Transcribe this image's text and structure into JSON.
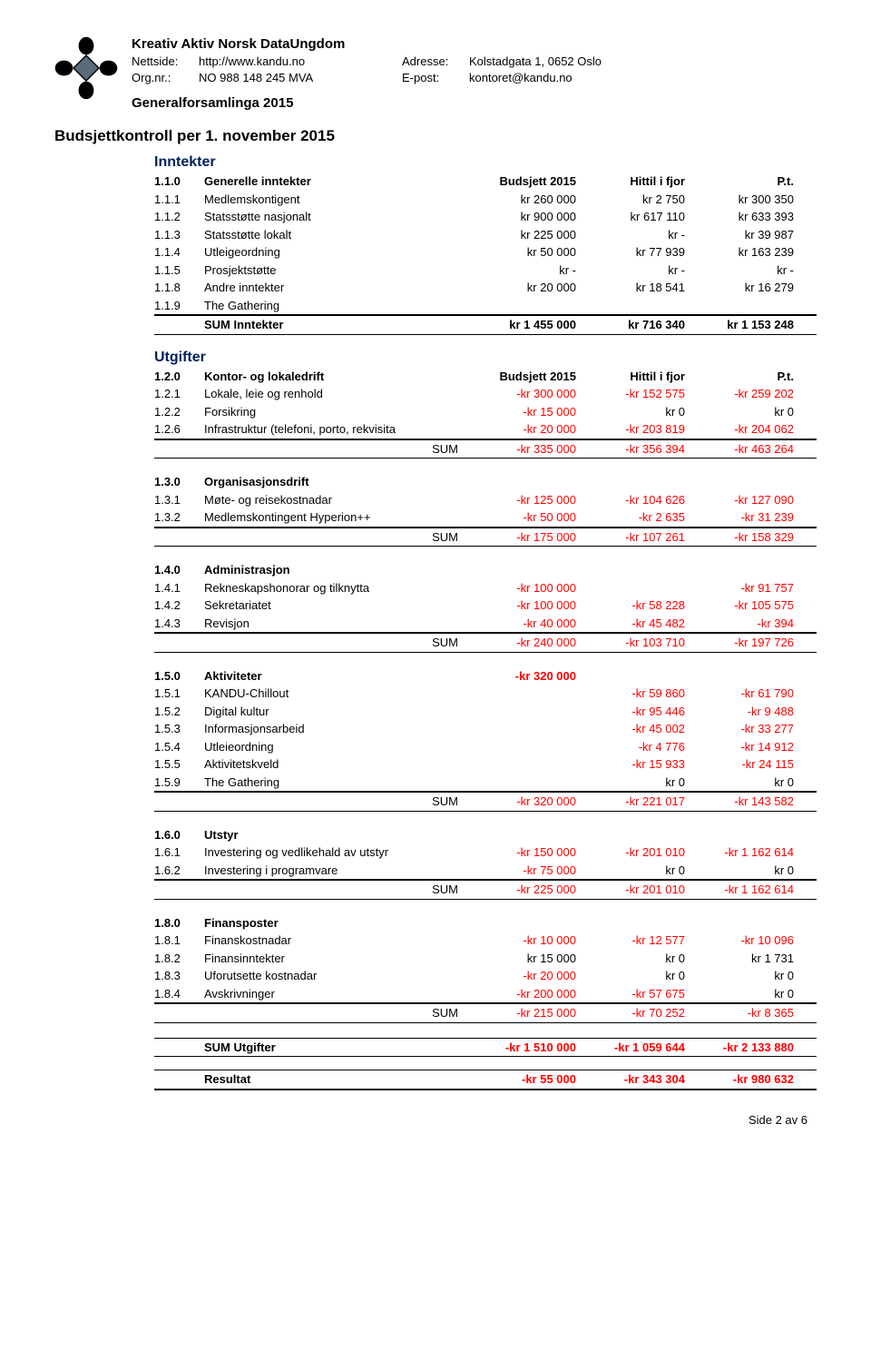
{
  "org": {
    "name": "Kreativ Aktiv Norsk DataUngdom",
    "website_label": "Nettside:",
    "website": "http://www.kandu.no",
    "orgnr_label": "Org.nr.:",
    "orgnr": "NO 988 148 245 MVA",
    "address_label": "Adresse:",
    "address": "Kolstadgata 1, 0652 Oslo",
    "email_label": "E-post:",
    "email": "kontoret@kandu.no",
    "assembly": "Generalforsamlinga 2015"
  },
  "title": "Budsjettkontroll per 1. november 2015",
  "inntekter": {
    "heading": "Inntekter",
    "headrow": {
      "num": "1.1.0",
      "label": "Generelle inntekter",
      "c3": "Budsjett 2015",
      "c4": "Hittil i fjor",
      "c5": "P.t."
    },
    "rows": [
      {
        "num": "1.1.1",
        "label": "Medlemskontigent",
        "c3": "kr 260 000",
        "c4": "kr 2 750",
        "c5": "kr 300 350"
      },
      {
        "num": "1.1.2",
        "label": "Statsstøtte nasjonalt",
        "c3": "kr 900 000",
        "c4": "kr 617 110",
        "c5": "kr 633 393"
      },
      {
        "num": "1.1.3",
        "label": "Statsstøtte lokalt",
        "c3": "kr 225 000",
        "c4": "kr -",
        "c5": "kr 39 987"
      },
      {
        "num": "1.1.4",
        "label": "Utleigeordning",
        "c3": "kr 50 000",
        "c4": "kr 77 939",
        "c5": "kr 163 239"
      },
      {
        "num": "1.1.5",
        "label": "Prosjektstøtte",
        "c3": "kr -",
        "c4": "kr -",
        "c5": "kr -"
      },
      {
        "num": "1.1.8",
        "label": "Andre inntekter",
        "c3": "kr 20 000",
        "c4": "kr 18 541",
        "c5": "kr 16 279"
      },
      {
        "num": "1.1.9",
        "label": "The Gathering",
        "c3": "",
        "c4": "",
        "c5": ""
      }
    ],
    "sum": {
      "label": "SUM Inntekter",
      "c3": "kr 1 455 000",
      "c4": "kr 716 340",
      "c5": "kr 1 153 248"
    }
  },
  "utgifter_heading": "Utgifter",
  "sections": [
    {
      "headrow": {
        "num": "1.2.0",
        "label": "Kontor- og lokaledrift",
        "c3": "Budsjett 2015",
        "c4": "Hittil i fjor",
        "c5": "P.t."
      },
      "rows": [
        {
          "num": "1.2.1",
          "label": "Lokale, leie og renhold",
          "c3": "-kr 300 000",
          "c4": "-kr 152 575",
          "c5": "-kr 259 202"
        },
        {
          "num": "1.2.2",
          "label": "Forsikring",
          "c3": "-kr 15 000",
          "c3neg": true,
          "c4": "kr 0",
          "c4neg": false,
          "c5": "kr 0",
          "c5neg": false
        },
        {
          "num": "1.2.6",
          "label": "Infrastruktur (telefoni, porto, rekvisita",
          "c3": "-kr 20 000",
          "c4": "-kr 203 819",
          "c5": "-kr 204 062"
        }
      ],
      "sum": {
        "label": "SUM",
        "c3": "-kr 335 000",
        "c4": "-kr 356 394",
        "c5": "-kr 463 264"
      }
    },
    {
      "headrow": {
        "num": "1.3.0",
        "label": "Organisasjonsdrift"
      },
      "rows": [
        {
          "num": "1.3.1",
          "label": "Møte- og reisekostnadar",
          "c3": "-kr 125 000",
          "c4": "-kr 104 626",
          "c5": "-kr 127 090"
        },
        {
          "num": "1.3.2",
          "label": "Medlemskontingent Hyperion++",
          "c3": "-kr 50 000",
          "c4": "-kr 2 635",
          "c5": "-kr 31 239"
        }
      ],
      "sum": {
        "label": "SUM",
        "c3": "-kr 175 000",
        "c4": "-kr 107 261",
        "c5": "-kr 158 329"
      }
    },
    {
      "headrow": {
        "num": "1.4.0",
        "label": "Administrasjon"
      },
      "rows": [
        {
          "num": "1.4.1",
          "label": "Rekneskapshonorar og tilknytta",
          "c3": "-kr 100 000",
          "c4": "",
          "c5": "-kr 91 757"
        },
        {
          "num": "1.4.2",
          "label": "Sekretariatet",
          "c3": "-kr 100 000",
          "c4": "-kr 58 228",
          "c5": "-kr 105 575"
        },
        {
          "num": "1.4.3",
          "label": "Revisjon",
          "c3": "-kr 40 000",
          "c4": "-kr 45 482",
          "c5": "-kr 394"
        }
      ],
      "sum": {
        "label": "SUM",
        "c3": "-kr 240 000",
        "c4": "-kr 103 710",
        "c5": "-kr 197 726"
      }
    },
    {
      "headrow": {
        "num": "1.5.0",
        "label": "Aktiviteter",
        "c3": "-kr 320 000",
        "c3neg": true
      },
      "rows": [
        {
          "num": "1.5.1",
          "label": "KANDU-Chillout",
          "c3": "",
          "c4": "-kr 59 860",
          "c5": "-kr 61 790"
        },
        {
          "num": "1.5.2",
          "label": "Digital kultur",
          "c3": "",
          "c4": "-kr 95 446",
          "c5": "-kr 9 488"
        },
        {
          "num": "1.5.3",
          "label": "Informasjonsarbeid",
          "c3": "",
          "c4": "-kr 45 002",
          "c5": "-kr 33 277"
        },
        {
          "num": "1.5.4",
          "label": "Utleieordning",
          "c3": "",
          "c4": "-kr 4 776",
          "c5": "-kr 14 912"
        },
        {
          "num": "1.5.5",
          "label": "Aktivitetskveld",
          "c3": "",
          "c4": "-kr 15 933",
          "c5": "-kr 24 115"
        },
        {
          "num": "1.5.9",
          "label": "The Gathering",
          "c3": "",
          "c4": "kr 0",
          "c4neg": false,
          "c5": "kr 0",
          "c5neg": false
        }
      ],
      "sum": {
        "label": "SUM",
        "c3": "-kr 320 000",
        "c4": "-kr 221 017",
        "c5": "-kr 143 582"
      }
    },
    {
      "headrow": {
        "num": "1.6.0",
        "label": "Utstyr"
      },
      "rows": [
        {
          "num": "1.6.1",
          "label": "Investering og vedlikehald av utstyr",
          "c3": "-kr 150 000",
          "c4": "-kr 201 010",
          "c5": "-kr 1 162 614"
        },
        {
          "num": "1.6.2",
          "label": "Investering i programvare",
          "c3": "-kr 75 000",
          "c3neg": true,
          "c4": "kr 0",
          "c4neg": false,
          "c5": "kr 0",
          "c5neg": false
        }
      ],
      "sum": {
        "label": "SUM",
        "c3": "-kr 225 000",
        "c4": "-kr 201 010",
        "c5": "-kr 1 162 614"
      }
    },
    {
      "headrow": {
        "num": "1.8.0",
        "label": "Finansposter"
      },
      "rows": [
        {
          "num": "1.8.1",
          "label": "Finanskostnadar",
          "c3": "-kr 10 000",
          "c4": "-kr 12 577",
          "c5": "-kr 10 096"
        },
        {
          "num": "1.8.2",
          "label": "Finansinntekter",
          "c3": "kr 15 000",
          "c3neg": false,
          "c4": "kr 0",
          "c4neg": false,
          "c5": "kr 1 731",
          "c5neg": false
        },
        {
          "num": "1.8.3",
          "label": "Uforutsette kostnadar",
          "c3": "-kr 20 000",
          "c3neg": true,
          "c4": "kr 0",
          "c4neg": false,
          "c5": "kr 0",
          "c5neg": false
        },
        {
          "num": "1.8.4",
          "label": "Avskrivninger",
          "c3": "-kr 200 000",
          "c3neg": true,
          "c4": "-kr 57 675",
          "c5": "kr 0",
          "c5neg": false
        }
      ],
      "sum": {
        "label": "SUM",
        "c3": "-kr 215 000",
        "c4": "-kr 70 252",
        "c5": "-kr 8 365"
      }
    }
  ],
  "grand_sum_utgifter": {
    "label": "SUM Utgifter",
    "c3": "-kr 1 510 000",
    "c4": "-kr 1 059 644",
    "c5": "-kr 2 133 880"
  },
  "resultat": {
    "label": "Resultat",
    "c3": "-kr 55 000",
    "c4": "-kr 343 304",
    "c5": "-kr 980 632"
  },
  "footer": "Side 2 av 6"
}
